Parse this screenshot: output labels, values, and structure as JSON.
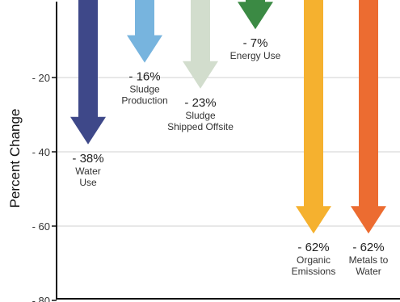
{
  "chart_data": {
    "type": "bar",
    "ylabel": "Percent Change",
    "ylim": [
      -80,
      0
    ],
    "yticks": [
      -20,
      -40,
      -60,
      -80
    ],
    "ytick_labels": [
      "- 20",
      "- 40",
      "- 60",
      "- 80"
    ],
    "grid": true,
    "categories": [
      [
        "Water",
        "Use"
      ],
      [
        "Sludge",
        "Production"
      ],
      [
        "Sludge",
        "Shipped Offsite"
      ],
      [
        "Energy Use"
      ],
      [
        "Organic",
        "Emissions"
      ],
      [
        "Metals to",
        "Water"
      ]
    ],
    "values": [
      -38,
      -16,
      -23,
      -7,
      -62,
      -62
    ],
    "value_labels": [
      "- 38%",
      "- 16%",
      "- 23%",
      "- 7%",
      "- 62%",
      "- 62%"
    ],
    "colors": [
      "#3e4889",
      "#77b4de",
      "#d2ddcd",
      "#3b8a44",
      "#f5b12f",
      "#ec6c31"
    ]
  }
}
